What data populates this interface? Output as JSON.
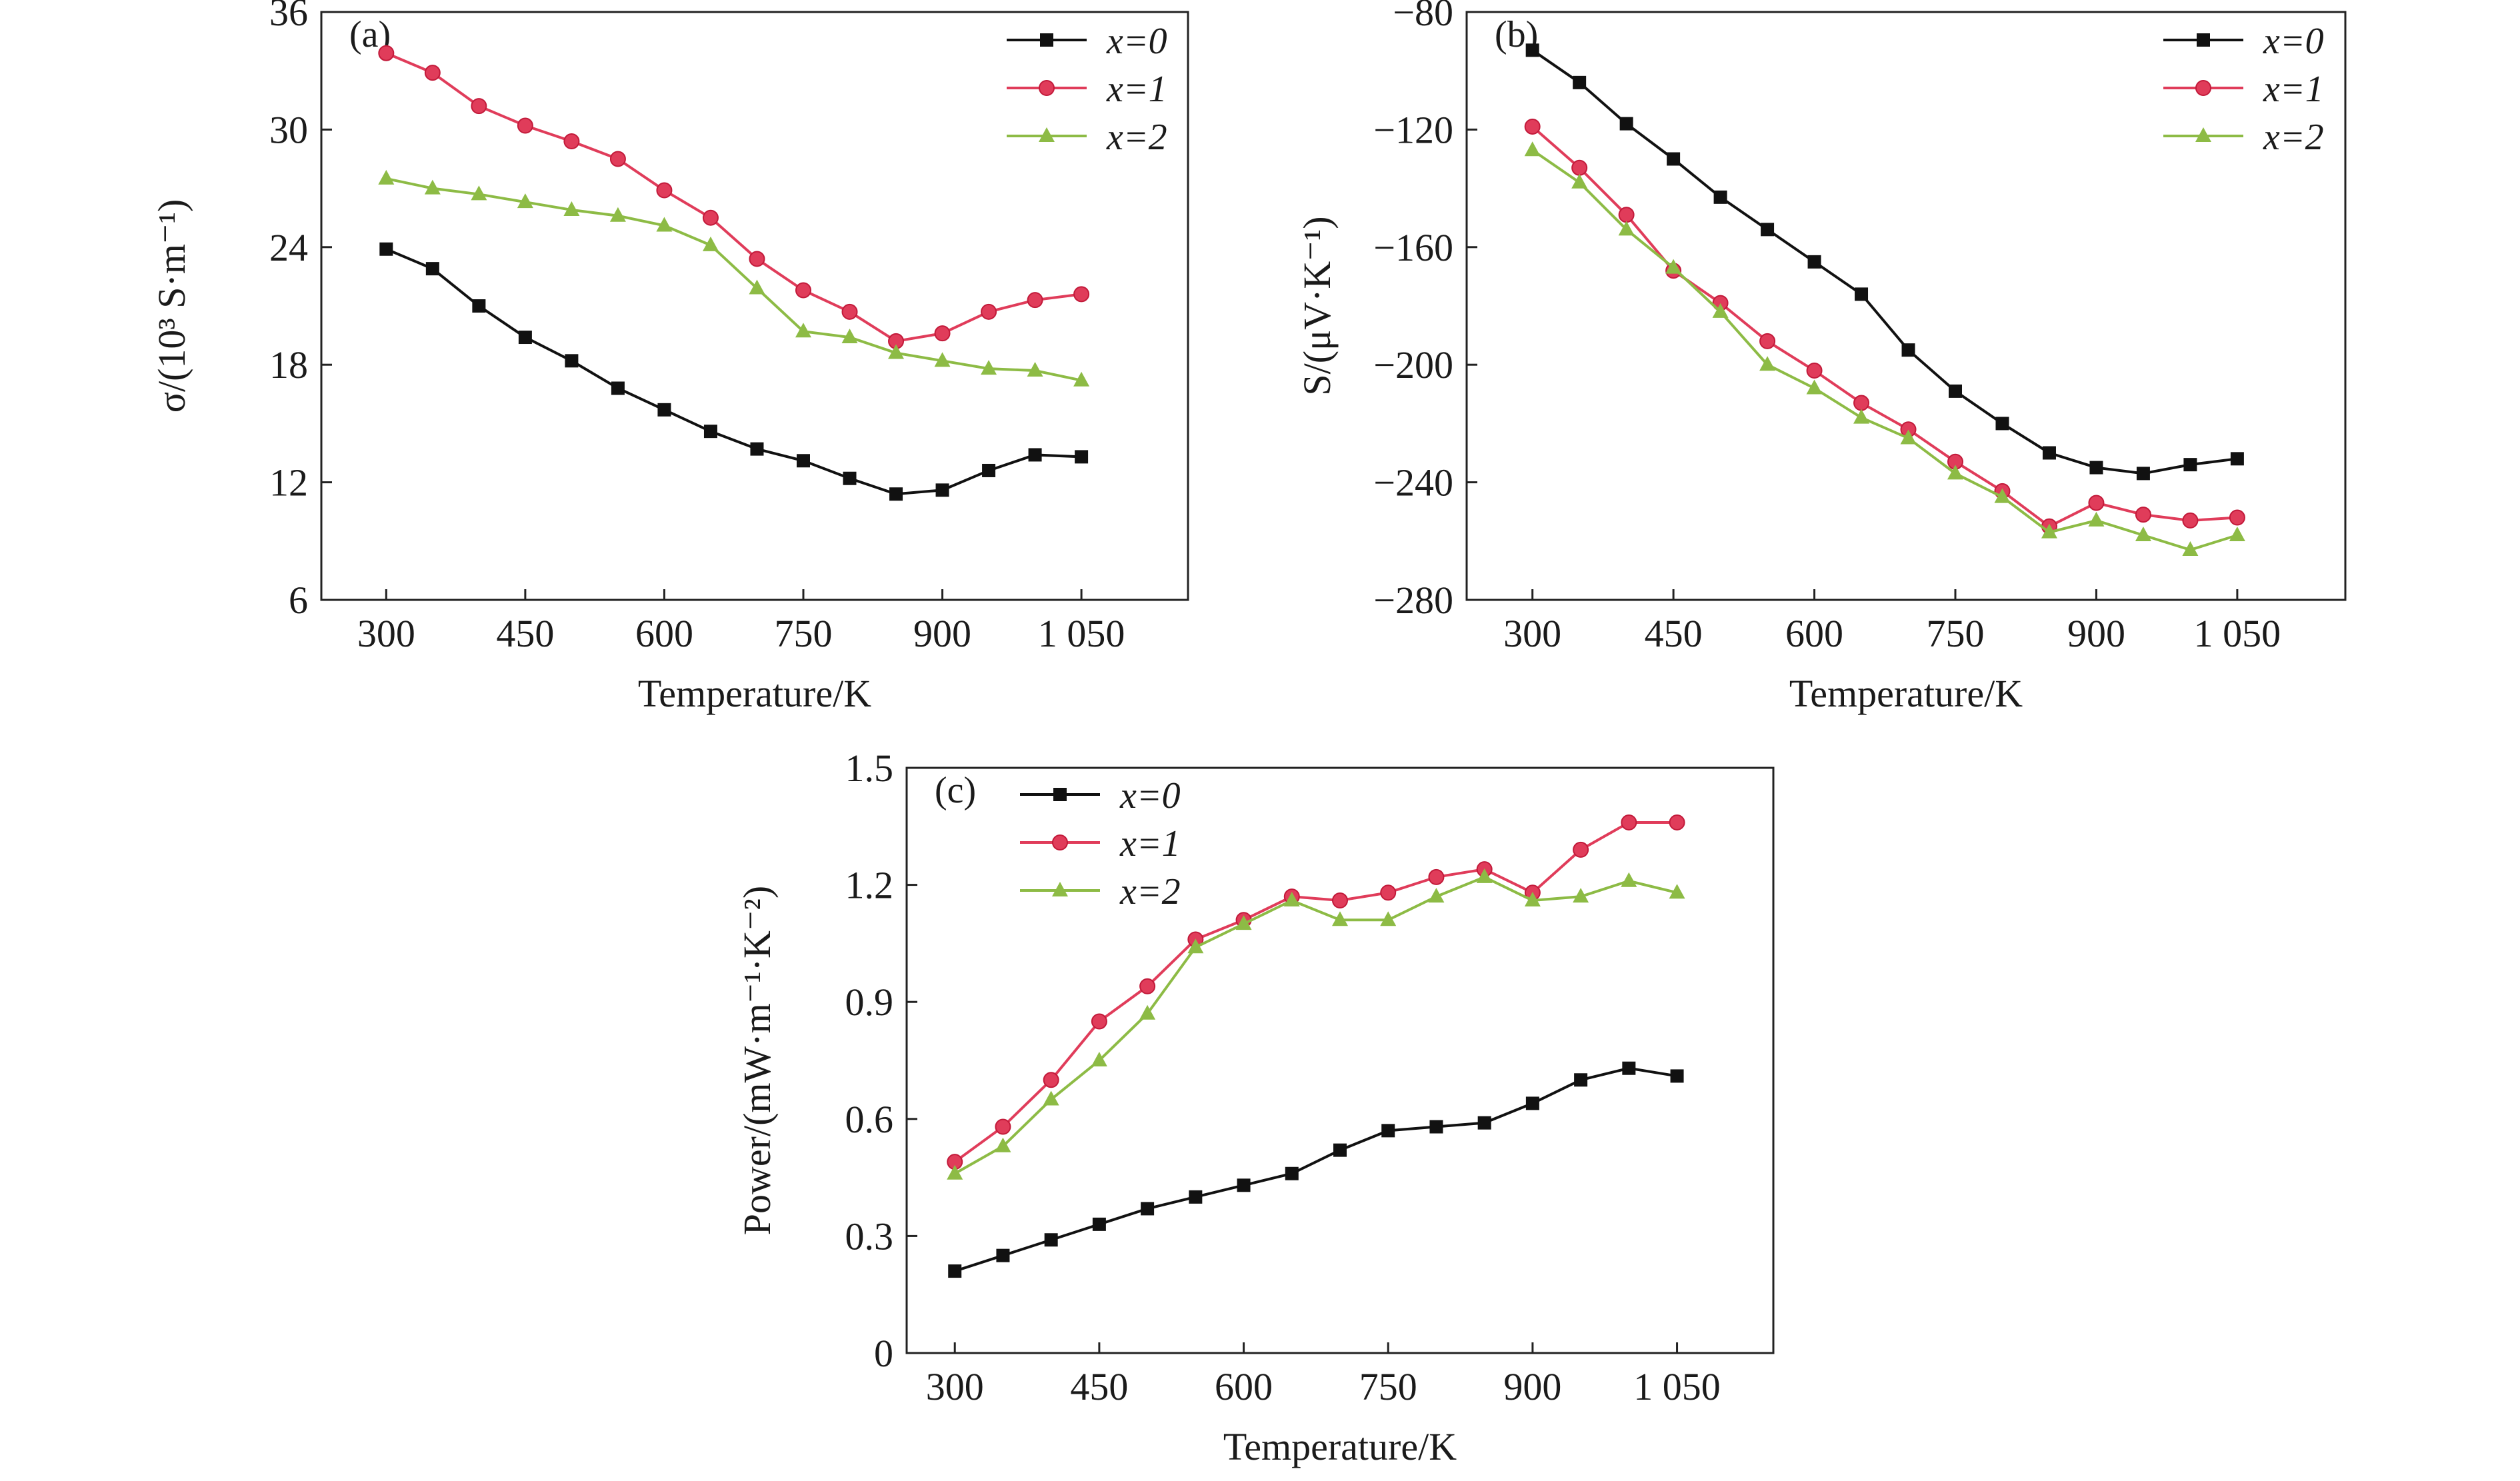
{
  "chart_data": [
    {
      "type": "line",
      "panel_label": "(a)",
      "xlabel": "Temperature/K",
      "ylabel": "σ/(10³ S·m⁻¹)",
      "xlim": [
        230,
        1165
      ],
      "ylim": [
        6,
        36
      ],
      "xticks": [
        300,
        450,
        600,
        750,
        900,
        1050
      ],
      "xtick_labels": [
        "300",
        "450",
        "600",
        "750",
        "900",
        "1 050"
      ],
      "yticks": [
        6,
        12,
        18,
        24,
        30,
        36
      ],
      "ytick_labels": [
        "6",
        "12",
        "18",
        "24",
        "30",
        "36"
      ],
      "legend_position": "top-right",
      "x": [
        300,
        350,
        400,
        450,
        500,
        550,
        600,
        650,
        700,
        750,
        800,
        850,
        900,
        950,
        1000,
        1050
      ],
      "series": [
        {
          "name": "x=0",
          "color": "#111111",
          "marker": "square",
          "values": [
            23.9,
            22.9,
            21.0,
            19.4,
            18.2,
            16.8,
            15.7,
            14.6,
            13.7,
            13.1,
            12.2,
            11.4,
            11.6,
            12.6,
            13.4,
            13.3
          ]
        },
        {
          "name": "x=1",
          "color": "#e03c5a",
          "marker": "circle",
          "values": [
            33.9,
            32.9,
            31.2,
            30.2,
            29.4,
            28.5,
            26.9,
            25.5,
            23.4,
            21.8,
            20.7,
            19.2,
            19.6,
            20.7,
            21.3,
            21.6
          ]
        },
        {
          "name": "x=2",
          "color": "#8dbb45",
          "marker": "triangle",
          "values": [
            27.5,
            27.0,
            26.7,
            26.3,
            25.9,
            25.6,
            25.1,
            24.1,
            21.9,
            19.7,
            19.4,
            18.6,
            18.2,
            17.8,
            17.7,
            17.2
          ]
        }
      ]
    },
    {
      "type": "line",
      "panel_label": "(b)",
      "xlabel": "Temperature/K",
      "ylabel": "S/(μV·K⁻¹)",
      "xlim": [
        230,
        1165
      ],
      "ylim": [
        -280,
        -80
      ],
      "xticks": [
        300,
        450,
        600,
        750,
        900,
        1050
      ],
      "xtick_labels": [
        "300",
        "450",
        "600",
        "750",
        "900",
        "1 050"
      ],
      "yticks": [
        -280,
        -240,
        -200,
        -160,
        -120,
        -80
      ],
      "ytick_labels": [
        "−280",
        "−240",
        "−200",
        "−160",
        "−120",
        "−80"
      ],
      "legend_position": "top-right",
      "x": [
        300,
        350,
        400,
        450,
        500,
        550,
        600,
        650,
        700,
        750,
        800,
        850,
        900,
        950,
        1000,
        1050
      ],
      "series": [
        {
          "name": "x=0",
          "color": "#111111",
          "marker": "square",
          "values": [
            -93,
            -104,
            -118,
            -130,
            -143,
            -154,
            -165,
            -176,
            -195,
            -209,
            -220,
            -230,
            -235,
            -237,
            -234,
            -232
          ]
        },
        {
          "name": "x=1",
          "color": "#e03c5a",
          "marker": "circle",
          "values": [
            -119,
            -133,
            -149,
            -168,
            -179,
            -192,
            -202,
            -213,
            -222,
            -233,
            -243,
            -255,
            -247,
            -251,
            -253,
            -252
          ]
        },
        {
          "name": "x=2",
          "color": "#8dbb45",
          "marker": "triangle",
          "values": [
            -127,
            -138,
            -154,
            -167,
            -182,
            -200,
            -208,
            -218,
            -225,
            -237,
            -245,
            -257,
            -253,
            -258,
            -263,
            -258
          ]
        }
      ]
    },
    {
      "type": "line",
      "panel_label": "(c)",
      "xlabel": "Temperature/K",
      "ylabel": "Power/(mW·m⁻¹·K⁻²)",
      "xlim": [
        250,
        1150
      ],
      "ylim": [
        0,
        1.5
      ],
      "xticks": [
        300,
        450,
        600,
        750,
        900,
        1050
      ],
      "xtick_labels": [
        "300",
        "450",
        "600",
        "750",
        "900",
        "1 050"
      ],
      "yticks": [
        0,
        0.3,
        0.6,
        0.9,
        1.2,
        1.5
      ],
      "ytick_labels": [
        "0",
        "0.3",
        "0.6",
        "0.9",
        "1.2",
        "1.5"
      ],
      "legend_position": "top-left",
      "x": [
        300,
        350,
        400,
        450,
        500,
        550,
        600,
        650,
        700,
        750,
        800,
        850,
        900,
        950,
        1000,
        1050
      ],
      "series": [
        {
          "name": "x=0",
          "color": "#111111",
          "marker": "square",
          "values": [
            0.21,
            0.25,
            0.29,
            0.33,
            0.37,
            0.4,
            0.43,
            0.46,
            0.52,
            0.57,
            0.58,
            0.59,
            0.64,
            0.7,
            0.73,
            0.71
          ]
        },
        {
          "name": "x=1",
          "color": "#e03c5a",
          "marker": "circle",
          "values": [
            0.49,
            0.58,
            0.7,
            0.85,
            0.94,
            1.06,
            1.11,
            1.17,
            1.16,
            1.18,
            1.22,
            1.24,
            1.18,
            1.29,
            1.36,
            1.36
          ]
        },
        {
          "name": "x=2",
          "color": "#8dbb45",
          "marker": "triangle",
          "values": [
            0.46,
            0.53,
            0.65,
            0.75,
            0.87,
            1.04,
            1.1,
            1.16,
            1.11,
            1.11,
            1.17,
            1.22,
            1.16,
            1.17,
            1.21,
            1.18
          ]
        }
      ]
    }
  ]
}
